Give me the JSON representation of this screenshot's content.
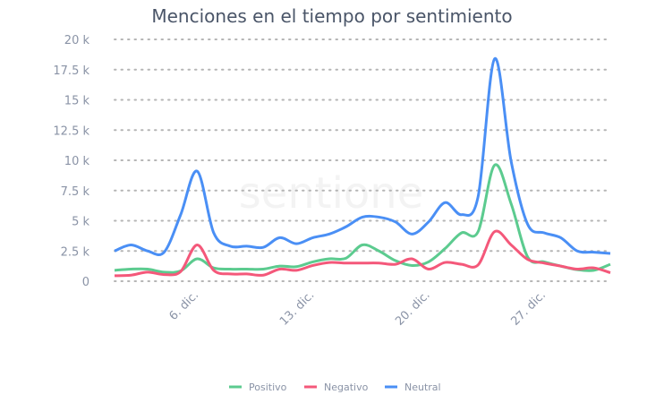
{
  "watermark": "sentione",
  "chart_data": {
    "type": "line",
    "title": "Menciones en el tiempo por sentimiento",
    "xlabel": "",
    "ylabel": "",
    "x": [
      "1. dic.",
      "2. dic.",
      "3. dic.",
      "4. dic.",
      "5. dic.",
      "6. dic.",
      "7. dic.",
      "8. dic.",
      "9. dic.",
      "10. dic.",
      "11. dic.",
      "12. dic.",
      "13. dic.",
      "14. dic.",
      "15. dic.",
      "16. dic.",
      "17. dic.",
      "18. dic.",
      "19. dic.",
      "20. dic.",
      "21. dic.",
      "22. dic.",
      "23. dic.",
      "24. dic.",
      "25. dic.",
      "26. dic.",
      "27. dic.",
      "28. dic.",
      "29. dic.",
      "30. dic.",
      "31. dic."
    ],
    "xticks": [
      {
        "index": 5,
        "label": "6. dic."
      },
      {
        "index": 12,
        "label": "13. dic."
      },
      {
        "index": 19,
        "label": "20. dic."
      },
      {
        "index": 26,
        "label": "27. dic."
      }
    ],
    "ylim": [
      0,
      20000
    ],
    "yticks": [
      {
        "value": 0,
        "label": "0"
      },
      {
        "value": 2500,
        "label": "2.5 k"
      },
      {
        "value": 5000,
        "label": "5 k"
      },
      {
        "value": 7500,
        "label": "7.5 k"
      },
      {
        "value": 10000,
        "label": "10 k"
      },
      {
        "value": 12500,
        "label": "12.5 k"
      },
      {
        "value": 15000,
        "label": "15 k"
      },
      {
        "value": 17500,
        "label": "17.5 k"
      },
      {
        "value": 20000,
        "label": "20 k"
      }
    ],
    "grid": true,
    "legend": "bottom",
    "series": [
      {
        "name": "Positivo",
        "color": "#5ccb8f",
        "values": [
          900,
          1000,
          1000,
          750,
          850,
          1850,
          1100,
          1000,
          1000,
          1000,
          1250,
          1200,
          1600,
          1850,
          1900,
          3000,
          2500,
          1700,
          1300,
          1600,
          2700,
          4000,
          4100,
          9600,
          6400,
          2000,
          1600,
          1250,
          950,
          900,
          1400
        ]
      },
      {
        "name": "Negativo",
        "color": "#f4587a",
        "values": [
          450,
          500,
          750,
          550,
          800,
          3000,
          900,
          600,
          600,
          500,
          1000,
          900,
          1300,
          1550,
          1500,
          1500,
          1500,
          1400,
          1850,
          1000,
          1550,
          1400,
          1350,
          4100,
          3000,
          1800,
          1500,
          1250,
          1000,
          1100,
          700
        ]
      },
      {
        "name": "Neutral",
        "color": "#4a8ff5",
        "values": [
          2500,
          3000,
          2500,
          2400,
          5500,
          9100,
          4000,
          2900,
          2900,
          2800,
          3600,
          3100,
          3600,
          3900,
          4500,
          5300,
          5300,
          4900,
          3900,
          4900,
          6500,
          5500,
          7000,
          18400,
          9900,
          4700,
          4000,
          3600,
          2500,
          2400,
          2300
        ]
      }
    ]
  }
}
